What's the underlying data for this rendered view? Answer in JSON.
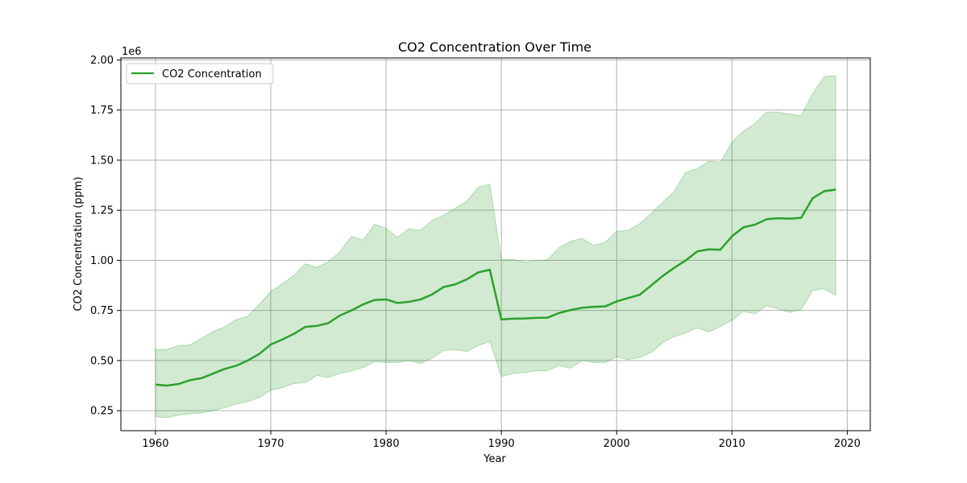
{
  "chart_data": {
    "type": "line",
    "title": "CO2 Concentration Over Time",
    "xlabel": "Year",
    "ylabel": "CO2 Concentration (ppm)",
    "y_offset_label": "1e6",
    "xlim": [
      1957,
      2022
    ],
    "ylim": [
      150000,
      2010000
    ],
    "x_ticks": [
      1960,
      1970,
      1980,
      1990,
      2000,
      2010,
      2020
    ],
    "x_tick_labels": [
      "1960",
      "1970",
      "1980",
      "1990",
      "2000",
      "2010",
      "2020"
    ],
    "y_ticks": [
      250000,
      500000,
      750000,
      1000000,
      1250000,
      1500000,
      1750000,
      2000000
    ],
    "y_tick_labels": [
      "0.25",
      "0.50",
      "0.75",
      "1.00",
      "1.25",
      "1.50",
      "1.75",
      "2.00"
    ],
    "grid": true,
    "legend_placement": "top-left",
    "colors": {
      "line": "#2ca02c",
      "band": "#2ca02c"
    },
    "x": [
      1960,
      1961,
      1962,
      1963,
      1964,
      1965,
      1966,
      1967,
      1968,
      1969,
      1970,
      1971,
      1972,
      1973,
      1974,
      1975,
      1976,
      1977,
      1978,
      1979,
      1980,
      1981,
      1982,
      1983,
      1984,
      1985,
      1986,
      1987,
      1988,
      1989,
      1990,
      1991,
      1992,
      1993,
      1994,
      1995,
      1996,
      1997,
      1998,
      1999,
      2000,
      2001,
      2002,
      2003,
      2004,
      2005,
      2006,
      2007,
      2008,
      2009,
      2010,
      2011,
      2012,
      2013,
      2014,
      2015,
      2016,
      2017,
      2018,
      2019
    ],
    "series": [
      {
        "name": "CO2 Concentration",
        "values": [
          380000,
          375000,
          383000,
          402000,
          412000,
          435000,
          458000,
          474000,
          500000,
          533000,
          580000,
          605000,
          633000,
          668000,
          673000,
          687000,
          725000,
          750000,
          780000,
          802000,
          805000,
          787000,
          793000,
          805000,
          830000,
          867000,
          880000,
          905000,
          940000,
          953000,
          705000,
          709000,
          710000,
          713000,
          714000,
          737000,
          752000,
          763000,
          768000,
          770000,
          795000,
          812000,
          828000,
          875000,
          922000,
          963000,
          1000000,
          1045000,
          1055000,
          1053000,
          1120000,
          1165000,
          1178000,
          1205000,
          1210000,
          1208000,
          1212000,
          1310000,
          1345000,
          1353000
        ],
        "lower": [
          220000,
          215000,
          228000,
          235000,
          238000,
          250000,
          265000,
          283000,
          295000,
          315000,
          352000,
          365000,
          385000,
          390000,
          425000,
          415000,
          435000,
          448000,
          465000,
          495000,
          490000,
          490000,
          500000,
          485000,
          512000,
          550000,
          555000,
          545000,
          575000,
          595000,
          420000,
          435000,
          440000,
          448000,
          450000,
          475000,
          462000,
          500000,
          490000,
          490000,
          518000,
          505000,
          515000,
          540000,
          590000,
          620000,
          638000,
          663000,
          643000,
          670000,
          700000,
          745000,
          733000,
          773000,
          758000,
          740000,
          755000,
          850000,
          858000,
          825000
        ],
        "upper": [
          555000,
          555000,
          575000,
          578000,
          612000,
          645000,
          668000,
          705000,
          720000,
          780000,
          845000,
          883000,
          925000,
          983000,
          965000,
          993000,
          1043000,
          1120000,
          1100000,
          1180000,
          1160000,
          1115000,
          1158000,
          1150000,
          1200000,
          1225000,
          1260000,
          1295000,
          1365000,
          1380000,
          1003000,
          1005000,
          992000,
          997000,
          1003000,
          1063000,
          1095000,
          1110000,
          1075000,
          1090000,
          1145000,
          1150000,
          1183000,
          1235000,
          1290000,
          1345000,
          1440000,
          1457000,
          1495000,
          1490000,
          1590000,
          1645000,
          1682000,
          1740000,
          1740000,
          1730000,
          1722000,
          1832000,
          1917000,
          1922000
        ]
      }
    ]
  }
}
